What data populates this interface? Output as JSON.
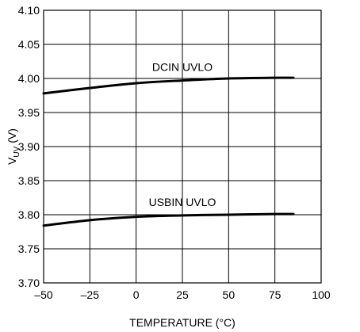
{
  "chart_data": {
    "type": "line",
    "xlabel": "TEMPERATURE (°C)",
    "ylabel_main": "V",
    "ylabel_sub": "UV",
    "ylabel_unit": " (V)",
    "xlim": [
      -50,
      100
    ],
    "ylim": [
      3.7,
      4.1
    ],
    "x_ticks": [
      -50,
      -25,
      0,
      25,
      50,
      75,
      100
    ],
    "x_tick_labels": [
      "–50",
      "–25",
      "0",
      "25",
      "50",
      "75",
      "100"
    ],
    "y_ticks": [
      3.7,
      3.75,
      3.8,
      3.85,
      3.9,
      3.95,
      4.0,
      4.05,
      4.1
    ],
    "y_tick_labels": [
      "3.70",
      "3.75",
      "3.80",
      "3.85",
      "3.90",
      "3.95",
      "4.00",
      "4.05",
      "4.10"
    ],
    "grid": true,
    "series": [
      {
        "name": "DCIN UVLO",
        "x": [
          -50,
          -25,
          0,
          25,
          50,
          75,
          85
        ],
        "y": [
          3.978,
          3.986,
          3.993,
          3.997,
          4.0,
          4.001,
          4.001
        ]
      },
      {
        "name": "USBIN UVLO",
        "x": [
          -50,
          -25,
          0,
          25,
          50,
          75,
          85
        ],
        "y": [
          3.784,
          3.792,
          3.797,
          3.799,
          3.8,
          3.801,
          3.801
        ]
      }
    ]
  }
}
